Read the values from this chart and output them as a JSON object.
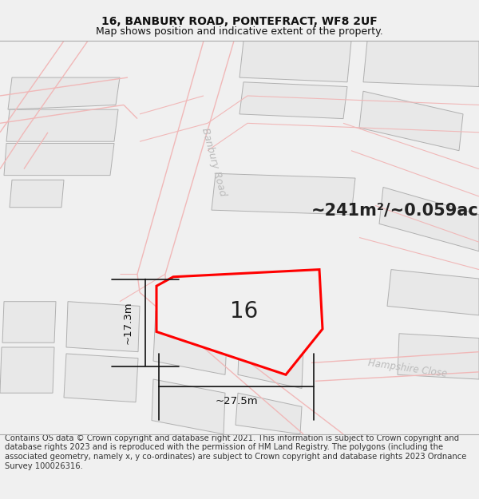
{
  "title_line1": "16, BANBURY ROAD, PONTEFRACT, WF8 2UF",
  "title_line2": "Map shows position and indicative extent of the property.",
  "footer_text": "Contains OS data © Crown copyright and database right 2021. This information is subject to Crown copyright and database rights 2023 and is reproduced with the permission of HM Land Registry. The polygons (including the associated geometry, namely x, y co-ordinates) are subject to Crown copyright and database rights 2023 Ordnance Survey 100026316.",
  "area_label": "~241m²/~0.059ac.",
  "property_number": "16",
  "dim_width": "~27.5m",
  "dim_height": "~17.3m",
  "road_label_upper": "Banbury Road",
  "road_label_lower": "Banbury Road",
  "close_label": "Hampshire Close",
  "map_bg": "#ffffff",
  "outer_bg": "#f0f0f0",
  "building_fill": "#e8e8e8",
  "building_stroke": "#b0b0b0",
  "property_fill": "#e8e8e8",
  "property_stroke": "#ff0000",
  "road_line_color": "#f0b8b8",
  "road_fill": "#ffffff",
  "dim_color": "#111111",
  "title_fontsize": 10,
  "subtitle_fontsize": 9,
  "footer_fontsize": 7.2,
  "area_fontsize": 15,
  "number_fontsize": 20,
  "road_fontsize": 9,
  "close_fontsize": 8.5
}
